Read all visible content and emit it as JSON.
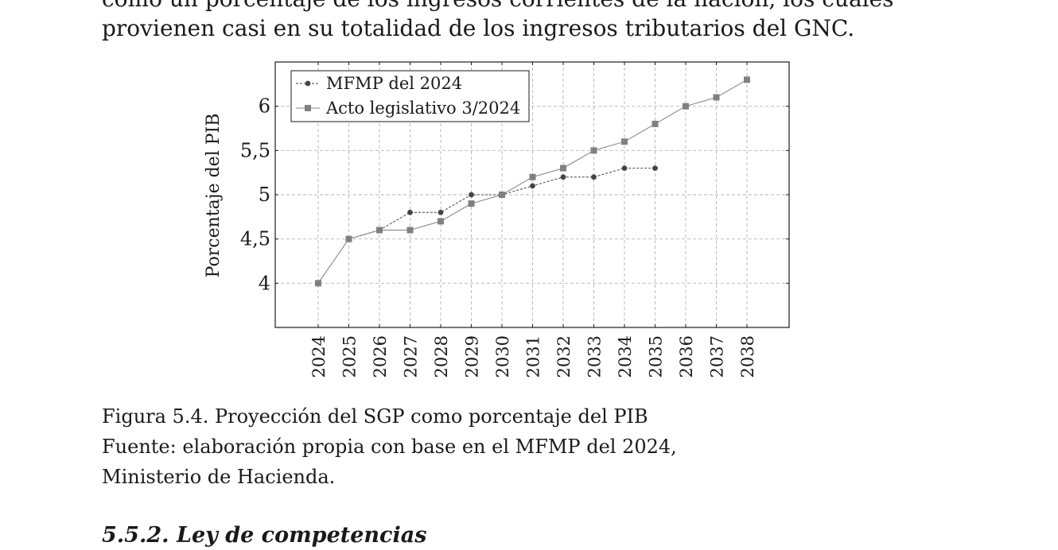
{
  "paragraph": {
    "line1": "como un porcentaje de los ingresos corrientes de la nación, los cuales",
    "line2": "provienen casi en su totalidad de los ingresos tributarios del GNC."
  },
  "chart_data": {
    "type": "line",
    "ylabel": "Porcentaje del PIB",
    "xlabel": "",
    "x": [
      "2024",
      "2025",
      "2026",
      "2027",
      "2028",
      "2029",
      "2030",
      "2031",
      "2032",
      "2033",
      "2034",
      "2035",
      "2036",
      "2037",
      "2038"
    ],
    "ylim": [
      3.5,
      6.5
    ],
    "yticks": [
      4,
      4.5,
      5,
      5.5,
      6
    ],
    "ytick_labels": [
      "4",
      "4,5",
      "5",
      "5,5",
      "6"
    ],
    "grid": true,
    "legend_position": "top-left",
    "series": [
      {
        "name": "MFMP del 2024",
        "marker": "circle",
        "line": "dashed",
        "color": "#444444",
        "x": [
          "2025",
          "2026",
          "2027",
          "2028",
          "2029",
          "2030",
          "2031",
          "2032",
          "2033",
          "2034",
          "2035"
        ],
        "values": [
          4.5,
          4.6,
          4.8,
          4.8,
          5.0,
          5.0,
          5.1,
          5.2,
          5.2,
          5.3,
          5.3
        ]
      },
      {
        "name": "Acto legislativo 3/2024",
        "marker": "square",
        "line": "solid",
        "color": "#808080",
        "x": [
          "2024",
          "2025",
          "2026",
          "2027",
          "2028",
          "2029",
          "2030",
          "2031",
          "2032",
          "2033",
          "2034",
          "2035",
          "2036",
          "2037",
          "2038"
        ],
        "values": [
          4.0,
          4.5,
          4.6,
          4.6,
          4.7,
          4.9,
          5.0,
          5.2,
          5.3,
          5.5,
          5.6,
          5.8,
          6.0,
          6.1,
          6.3
        ]
      }
    ]
  },
  "caption": {
    "line1": "Figura 5.4. Proyección del SGP como porcentaje del PIB",
    "line2": "Fuente: elaboración propia con base en el MFMP del 2024,",
    "line3": "Ministerio de Hacienda."
  },
  "section": {
    "heading": "5.5.2. Ley de competencias"
  }
}
